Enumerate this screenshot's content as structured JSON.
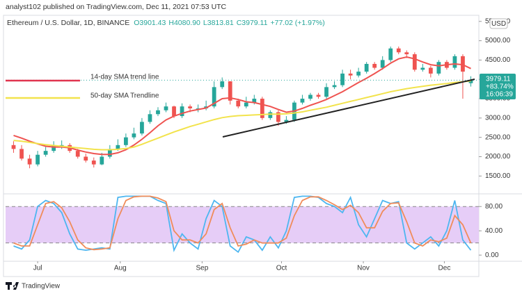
{
  "header": {
    "published": "analyst102 published on TradingView.com, Dec 11, 2021 07:53 UTC",
    "symbol": "Ethereum / U.S. Dollar, 1D, BINANCE",
    "open": "O3901.43",
    "high": "H4080.90",
    "low": "L3813.81",
    "close": "C3979.11",
    "change": "+77.02 (+1.97%)"
  },
  "currency": "USD",
  "price_label": {
    "price": "3979.11",
    "percent": "+83.74%",
    "countdown": "16:06:39"
  },
  "annotations": {
    "sma14": "14-day SMA trend line",
    "sma50": "50-day SMA Trendline"
  },
  "footer": {
    "brand": "TradingView"
  },
  "chart_data": [
    {
      "type": "candlestick",
      "up_color": "#26a69a",
      "down_color": "#ef5350",
      "xlim": [
        -1,
        58
      ],
      "xticks": [
        {
          "value": 3,
          "label": "Jul"
        },
        {
          "value": 13.3,
          "label": "Aug"
        },
        {
          "value": 23.5,
          "label": "Sep"
        },
        {
          "value": 33.4,
          "label": "Oct"
        },
        {
          "value": 43.6,
          "label": "Nov"
        },
        {
          "value": 53.7,
          "label": "Dec"
        }
      ],
      "ylim": [
        1200,
        5550
      ],
      "yticks": [
        {
          "value": 1500,
          "label": "1500.00"
        },
        {
          "value": 2000,
          "label": "2000.00"
        },
        {
          "value": 2500,
          "label": "2500.00"
        },
        {
          "value": 3000,
          "label": "3000.00"
        },
        {
          "value": 3500,
          "label": "3500.00"
        },
        {
          "value": 4000,
          "label": "4000.00"
        },
        {
          "value": 4500,
          "label": "4500.00"
        },
        {
          "value": 5000,
          "label": "5000.00"
        },
        {
          "value": 5500,
          "label": "5500.00"
        }
      ],
      "open": [
        2300,
        2200,
        1950,
        1800,
        2050,
        2150,
        2300,
        2300,
        2150,
        2000,
        1900,
        1800,
        2000,
        2200,
        2300,
        2500,
        2600,
        2900,
        3100,
        3200,
        3300,
        3050,
        3300,
        3250,
        3250,
        3300,
        3800,
        3950,
        3450,
        3300,
        3400,
        3500,
        3000,
        3150,
        2900,
        2950,
        3400,
        3500,
        3600,
        3550,
        3800,
        3850,
        4150,
        4100,
        4200,
        4400,
        4300,
        4500,
        4800,
        4700,
        4650,
        4250,
        4300,
        4150,
        4450,
        4300,
        4600,
        3901.43
      ],
      "high": [
        2400,
        2300,
        2050,
        2150,
        2250,
        2400,
        2420,
        2350,
        2200,
        2080,
        1980,
        2100,
        2300,
        2450,
        2600,
        2750,
        3000,
        3200,
        3280,
        3400,
        3320,
        3380,
        3350,
        3350,
        3450,
        3950,
        4050,
        3950,
        3500,
        3550,
        3600,
        3550,
        3200,
        3200,
        3050,
        3450,
        3600,
        3650,
        3650,
        3900,
        3950,
        4250,
        4250,
        4300,
        4450,
        4450,
        4600,
        4850,
        4850,
        4750,
        4700,
        4400,
        4350,
        4500,
        4500,
        4650,
        4650,
        4080.9
      ],
      "low": [
        2100,
        1900,
        1700,
        1750,
        2000,
        2100,
        2200,
        2100,
        1950,
        1850,
        1720,
        1780,
        1950,
        2150,
        2250,
        2450,
        2550,
        2850,
        3050,
        3150,
        3000,
        3000,
        3150,
        3150,
        3200,
        3250,
        3750,
        3350,
        3250,
        3250,
        3350,
        2950,
        2950,
        2800,
        2850,
        2900,
        3350,
        3450,
        3500,
        3500,
        3750,
        3800,
        4000,
        4050,
        4150,
        4250,
        4250,
        4450,
        4650,
        4550,
        4200,
        4200,
        4050,
        4100,
        4250,
        4250,
        3500,
        3813.81
      ],
      "close": [
        2200,
        1950,
        1800,
        2050,
        2150,
        2300,
        2300,
        2150,
        2000,
        1900,
        1800,
        2000,
        2200,
        2300,
        2500,
        2600,
        2900,
        3100,
        3200,
        3300,
        3050,
        3300,
        3250,
        3250,
        3300,
        3800,
        3950,
        3450,
        3300,
        3400,
        3500,
        3000,
        3150,
        2900,
        2950,
        3400,
        3500,
        3600,
        3550,
        3800,
        3850,
        4150,
        4100,
        4200,
        4400,
        4300,
        4500,
        4800,
        4700,
        4650,
        4250,
        4300,
        4150,
        4450,
        4300,
        4600,
        4200,
        3979.11
      ],
      "series": [
        {
          "color": "#ef5350",
          "values": [
            2550,
            2480,
            2400,
            2330,
            2270,
            2250,
            2250,
            2230,
            2170,
            2120,
            2080,
            2060,
            2060,
            2100,
            2180,
            2300,
            2450,
            2620,
            2800,
            2950,
            3050,
            3120,
            3180,
            3220,
            3260,
            3380,
            3500,
            3520,
            3480,
            3420,
            3400,
            3350,
            3300,
            3220,
            3150,
            3180,
            3250,
            3330,
            3400,
            3480,
            3580,
            3680,
            3800,
            3920,
            4030,
            4150,
            4280,
            4420,
            4530,
            4580,
            4530,
            4450,
            4380,
            4350,
            4380,
            4400,
            4380,
            4280
          ]
        },
        {
          "color": "#f2e34c",
          "values": [
            2420,
            2400,
            2370,
            2340,
            2310,
            2290,
            2270,
            2250,
            2230,
            2210,
            2190,
            2180,
            2180,
            2190,
            2210,
            2250,
            2320,
            2400,
            2480,
            2560,
            2640,
            2710,
            2780,
            2840,
            2900,
            2960,
            3010,
            3040,
            3060,
            3070,
            3080,
            3090,
            3100,
            3100,
            3110,
            3130,
            3160,
            3200,
            3240,
            3280,
            3330,
            3380,
            3430,
            3480,
            3530,
            3580,
            3630,
            3680,
            3720,
            3760,
            3790,
            3820,
            3850,
            3870,
            3890,
            3920,
            3940,
            3960
          ]
        }
      ]
    },
    {
      "type": "line",
      "xlim": [
        -1,
        58
      ],
      "ylim": [
        -9,
        94
      ],
      "band": [
        20,
        80
      ],
      "band_color": "#e6cdf7",
      "yticks": [
        {
          "value": 0,
          "label": "0.00"
        },
        {
          "value": 40,
          "label": "40.00"
        },
        {
          "value": 80,
          "label": "80.00"
        }
      ],
      "series": [
        {
          "color": "#4db6f0",
          "values": [
            15,
            10,
            25,
            80,
            90,
            85,
            70,
            35,
            10,
            8,
            10,
            12,
            10,
            95,
            97,
            97,
            97,
            97,
            90,
            85,
            8,
            35,
            20,
            10,
            60,
            90,
            80,
            15,
            5,
            30,
            25,
            8,
            30,
            12,
            40,
            95,
            97,
            97,
            95,
            85,
            80,
            70,
            95,
            50,
            30,
            60,
            90,
            85,
            88,
            20,
            10,
            20,
            30,
            15,
            40,
            90,
            25,
            8
          ]
        },
        {
          "color": "#f08c5a",
          "values": [
            20,
            15,
            15,
            50,
            85,
            88,
            78,
            55,
            25,
            12,
            9,
            10,
            12,
            60,
            90,
            96,
            97,
            97,
            94,
            88,
            40,
            25,
            25,
            20,
            35,
            75,
            85,
            45,
            15,
            18,
            25,
            20,
            20,
            20,
            28,
            65,
            90,
            96,
            96,
            90,
            83,
            75,
            82,
            70,
            45,
            45,
            72,
            85,
            86,
            55,
            20,
            15,
            25,
            22,
            28,
            65,
            50,
            20
          ]
        }
      ]
    }
  ]
}
